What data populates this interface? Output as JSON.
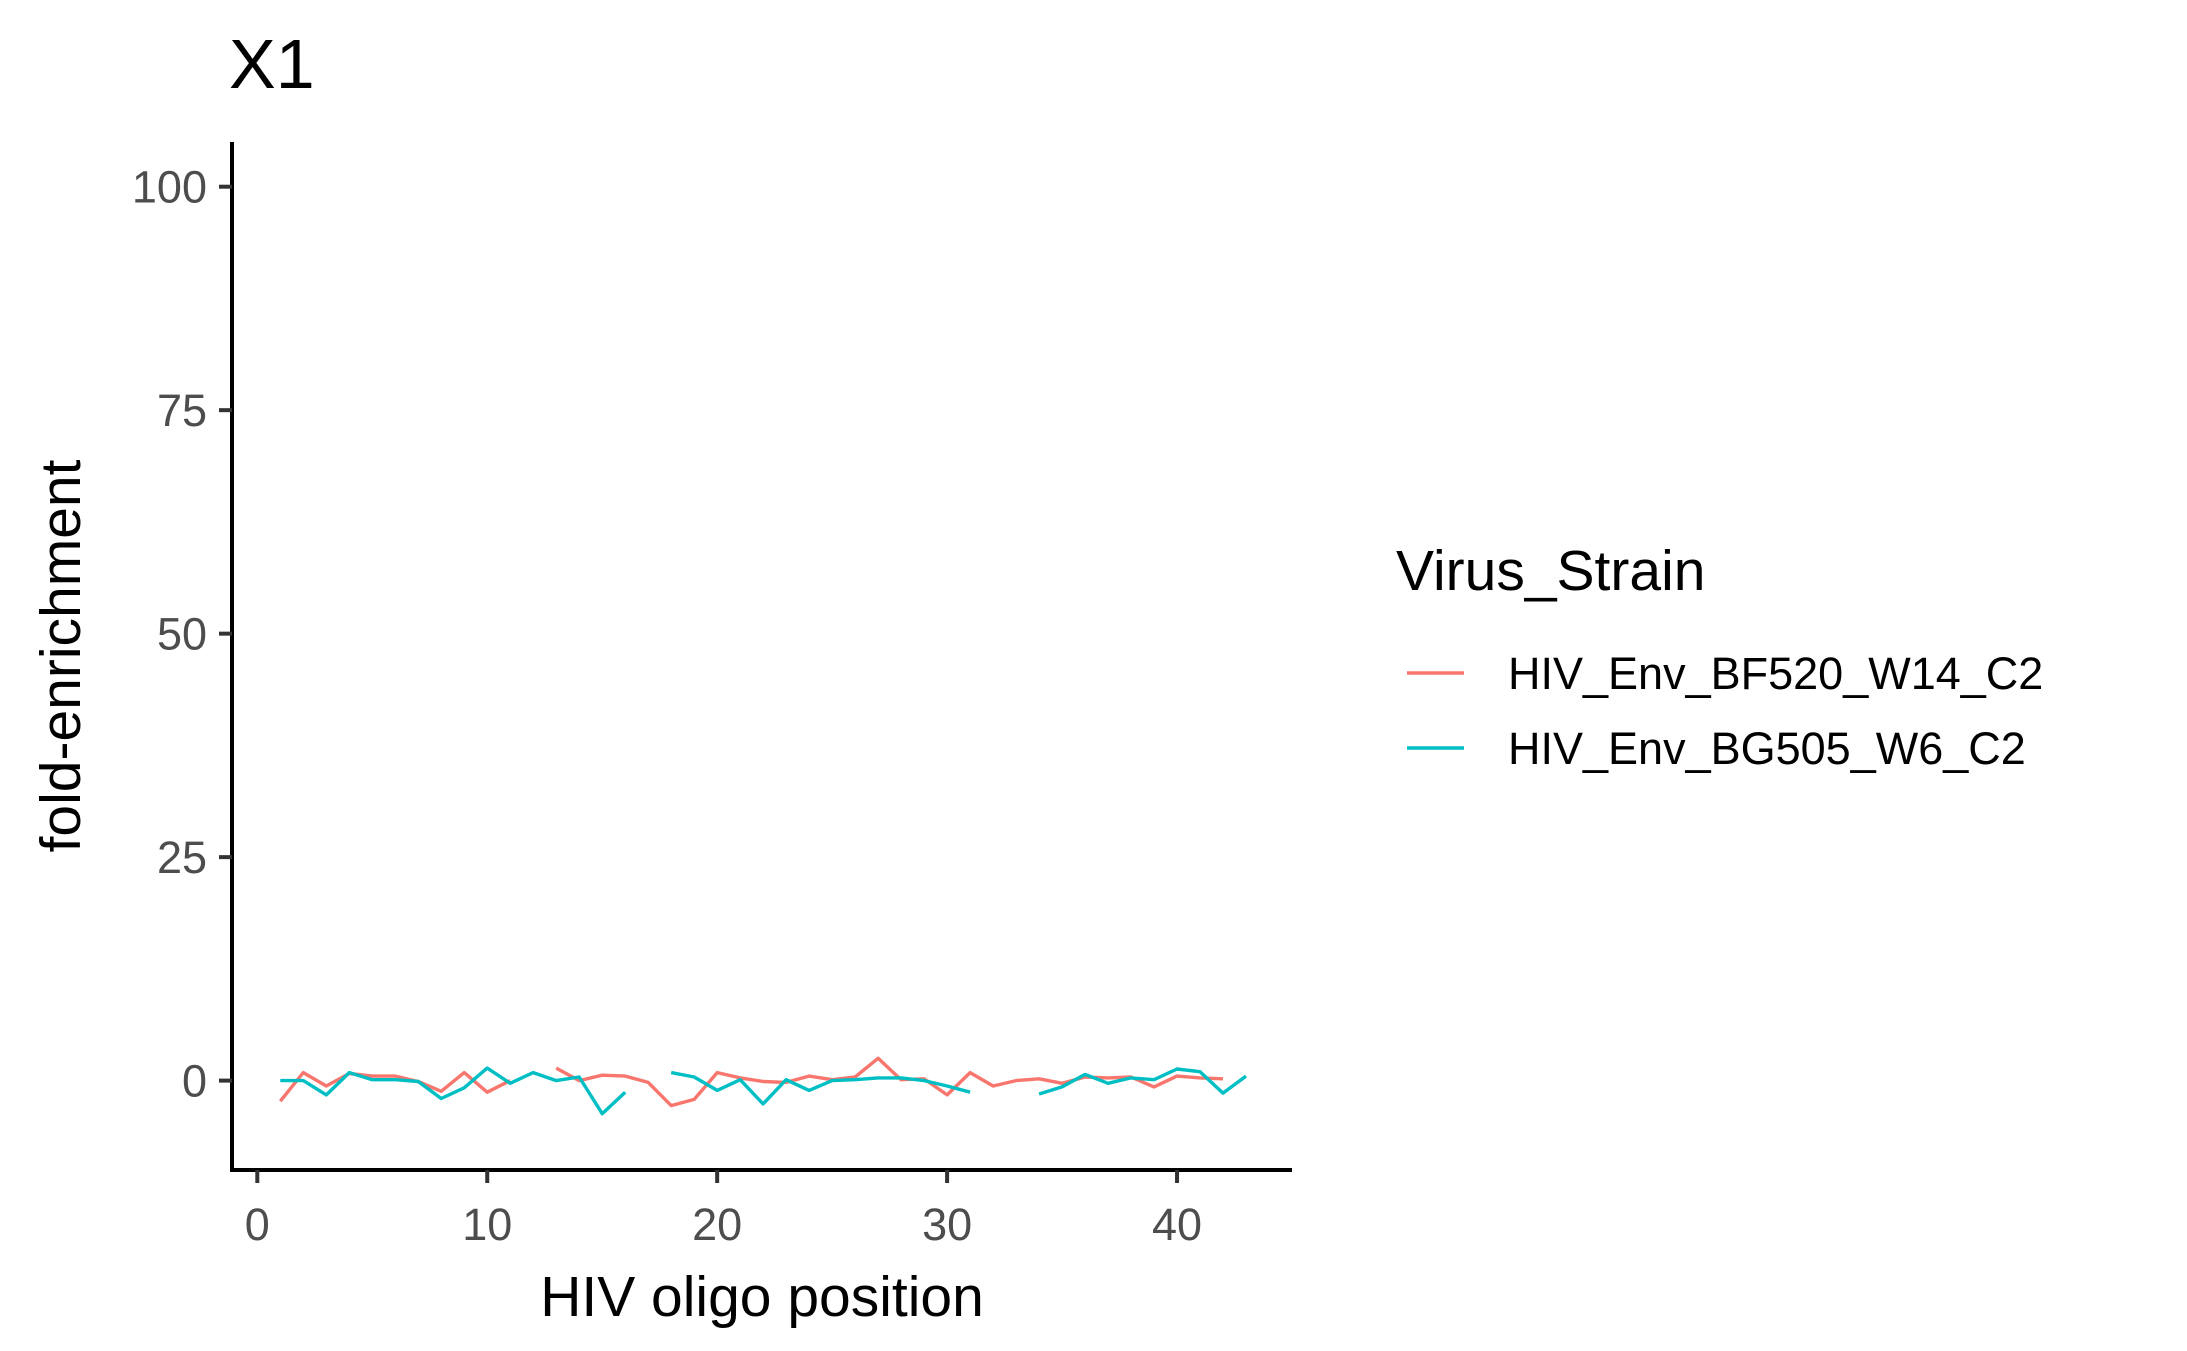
{
  "chart_data": {
    "type": "line",
    "title": "X1",
    "xlabel": "HIV oligo position",
    "ylabel": "fold-enrichment",
    "xlim": [
      -1.1,
      45
    ],
    "ylim": [
      -10,
      105
    ],
    "x_ticks": [
      0,
      10,
      20,
      30,
      40
    ],
    "y_ticks": [
      0,
      25,
      50,
      75,
      100
    ],
    "grid": false,
    "legend": {
      "title": "Virus_Strain",
      "position": "right"
    },
    "series": [
      {
        "name": "HIV_Env_BF520_W14_C2",
        "color": "#F8766D",
        "points": [
          [
            [
              1,
              -2.3
            ],
            [
              2,
              0.9
            ],
            [
              3,
              -0.6
            ],
            [
              4,
              0.8
            ],
            [
              5,
              0.5
            ],
            [
              6,
              0.5
            ],
            [
              7,
              -0.1
            ],
            [
              8,
              -1.2
            ],
            [
              9,
              0.9
            ],
            [
              10,
              -1.3
            ],
            [
              11,
              0.0
            ]
          ],
          [
            [
              13,
              1.4
            ],
            [
              14,
              0.0
            ],
            [
              15,
              0.6
            ],
            [
              16,
              0.5
            ],
            [
              17,
              -0.2
            ],
            [
              18,
              -2.8
            ],
            [
              19,
              -2.1
            ],
            [
              20,
              0.9
            ],
            [
              21,
              0.3
            ],
            [
              22,
              -0.1
            ],
            [
              23,
              -0.2
            ],
            [
              24,
              0.5
            ],
            [
              25,
              0.1
            ],
            [
              26,
              0.4
            ],
            [
              27,
              2.5
            ],
            [
              28,
              0.1
            ],
            [
              29,
              0.2
            ],
            [
              30,
              -1.6
            ],
            [
              31,
              0.9
            ],
            [
              32,
              -0.6
            ],
            [
              33,
              0.0
            ],
            [
              34,
              0.2
            ],
            [
              35,
              -0.3
            ],
            [
              36,
              0.4
            ],
            [
              37,
              0.3
            ],
            [
              38,
              0.4
            ],
            [
              39,
              -0.7
            ],
            [
              40,
              0.5
            ],
            [
              41,
              0.3
            ],
            [
              42,
              0.2
            ]
          ]
        ]
      },
      {
        "name": "HIV_Env_BG505_W6_C2",
        "color": "#00BFC4",
        "points": [
          [
            [
              1,
              0.0
            ],
            [
              2,
              0.0
            ],
            [
              3,
              -1.6
            ],
            [
              4,
              0.9
            ],
            [
              5,
              0.1
            ],
            [
              6,
              0.1
            ],
            [
              7,
              -0.1
            ],
            [
              8,
              -2.0
            ],
            [
              9,
              -0.8
            ],
            [
              10,
              1.4
            ],
            [
              11,
              -0.3
            ],
            [
              12,
              0.9
            ],
            [
              13,
              0.0
            ],
            [
              14,
              0.4
            ],
            [
              15,
              -3.7
            ],
            [
              16,
              -1.3
            ]
          ],
          [
            [
              18,
              0.9
            ],
            [
              19,
              0.4
            ],
            [
              20,
              -1.1
            ],
            [
              21,
              0.1
            ],
            [
              22,
              -2.6
            ],
            [
              23,
              0.1
            ],
            [
              24,
              -1.1
            ],
            [
              25,
              0.0
            ],
            [
              26,
              0.1
            ],
            [
              27,
              0.3
            ],
            [
              28,
              0.3
            ],
            [
              29,
              0.0
            ],
            [
              30,
              -0.6
            ],
            [
              31,
              -1.3
            ]
          ],
          [
            [
              34,
              -1.5
            ],
            [
              35,
              -0.7
            ],
            [
              36,
              0.7
            ],
            [
              37,
              -0.3
            ],
            [
              38,
              0.3
            ],
            [
              39,
              0.1
            ],
            [
              40,
              1.3
            ],
            [
              41,
              1.0
            ],
            [
              42,
              -1.4
            ],
            [
              43,
              0.5
            ]
          ]
        ]
      }
    ]
  }
}
